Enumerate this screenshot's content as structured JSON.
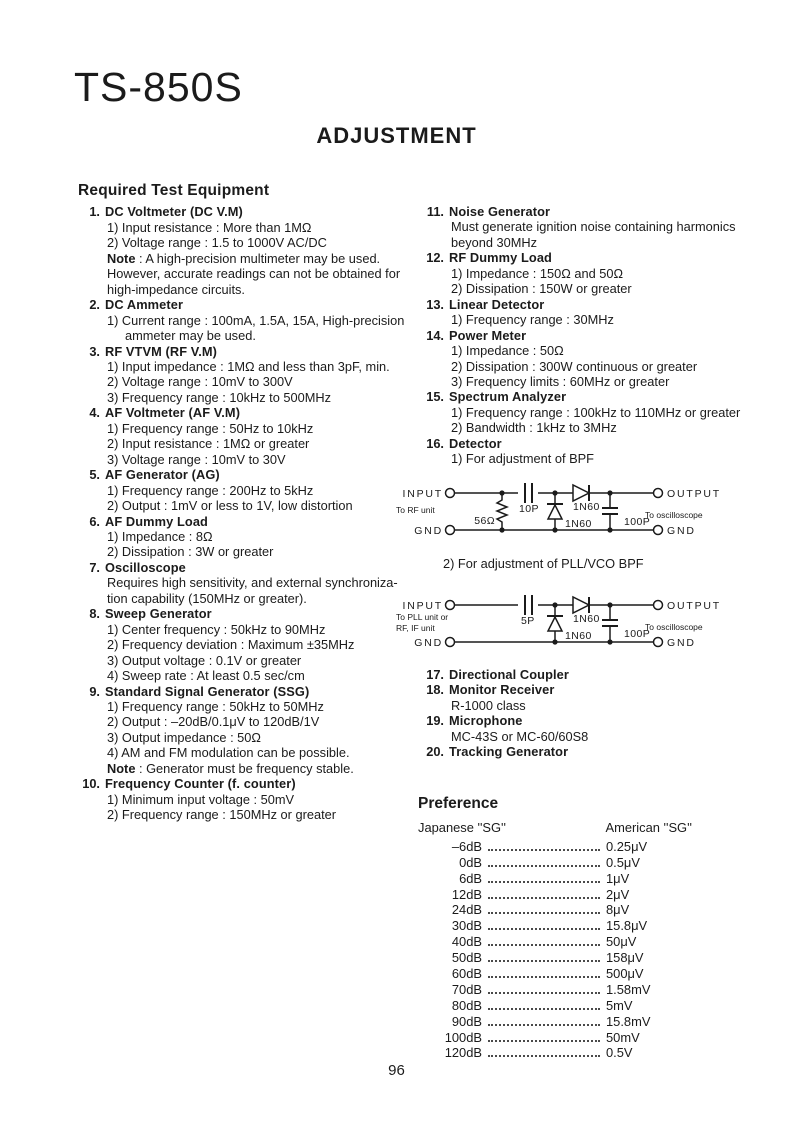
{
  "page": {
    "model": "TS-850S",
    "title": "ADJUSTMENT",
    "page_number": "96"
  },
  "equipment": {
    "heading": "Required Test Equipment",
    "pll_caption": "2) For adjustment of PLL/VCO BPF",
    "left": [
      {
        "num": "1.",
        "name": "DC Voltmeter (DC V.M)",
        "lines": [
          {
            "t": "1) Input resistance : More than 1MΩ",
            "lv": 1
          },
          {
            "t": "2) Voltage range : 1.5 to 1000V AC/DC",
            "lv": 1
          },
          {
            "pre": "Note",
            "t": " : A high-precision multimeter may be used.",
            "lv": 1
          },
          {
            "t": "However, accurate readings can not be obtained for",
            "lv": 1
          },
          {
            "t": "high-impedance circuits.",
            "lv": 1
          }
        ]
      },
      {
        "num": "2.",
        "name": "DC Ammeter",
        "lines": [
          {
            "t": "1) Current range : 100mA, 1.5A, 15A, High-precision",
            "lv": 1
          },
          {
            "t": "ammeter may be used.",
            "lv": 2
          }
        ]
      },
      {
        "num": "3.",
        "name": "RF VTVM (RF V.M)",
        "lines": [
          {
            "t": "1) Input impedance : 1MΩ and less than 3pF, min.",
            "lv": 1
          },
          {
            "t": "2) Voltage range : 10mV to 300V",
            "lv": 1
          },
          {
            "t": "3) Frequency range : 10kHz to 500MHz",
            "lv": 1
          }
        ]
      },
      {
        "num": "4.",
        "name": "AF Voltmeter (AF V.M)",
        "lines": [
          {
            "t": "1) Frequency range : 50Hz to 10kHz",
            "lv": 1
          },
          {
            "t": "2) Input resistance : 1MΩ or greater",
            "lv": 1
          },
          {
            "t": "3) Voltage range : 10mV to 30V",
            "lv": 1
          }
        ]
      },
      {
        "num": "5.",
        "name": "AF Generator (AG)",
        "lines": [
          {
            "t": "1) Frequency range : 200Hz to 5kHz",
            "lv": 1
          },
          {
            "t": "2) Output : 1mV or less to 1V, low distortion",
            "lv": 1
          }
        ]
      },
      {
        "num": "6.",
        "name": "AF Dummy Load",
        "lines": [
          {
            "t": "1) Impedance : 8Ω",
            "lv": 1
          },
          {
            "t": "2) Dissipation : 3W or greater",
            "lv": 1
          }
        ]
      },
      {
        "num": "7.",
        "name": "Oscilloscope",
        "lines": [
          {
            "t": "Requires high sensitivity, and external synchroniza-",
            "lv": 1
          },
          {
            "t": "tion capability (150MHz or greater).",
            "lv": 1
          }
        ]
      },
      {
        "num": "8.",
        "name": "Sweep Generator",
        "lines": [
          {
            "t": "1) Center frequency : 50kHz to 90MHz",
            "lv": 1
          },
          {
            "t": "2) Frequency deviation : Maximum ±35MHz",
            "lv": 1
          },
          {
            "t": "3) Output voltage : 0.1V or greater",
            "lv": 1
          },
          {
            "t": "4) Sweep rate : At least 0.5 sec/cm",
            "lv": 1
          }
        ]
      },
      {
        "num": "9.",
        "name": "Standard Signal Generator (SSG)",
        "lines": [
          {
            "t": "1) Frequency range : 50kHz to 50MHz",
            "lv": 1
          },
          {
            "t": "2) Output : –20dB/0.1μV to 120dB/1V",
            "lv": 1
          },
          {
            "t": "3) Output impedance : 50Ω",
            "lv": 1
          },
          {
            "t": "4) AM and FM modulation can be possible.",
            "lv": 1
          },
          {
            "pre": "Note",
            "t": " : Generator must be frequency stable.",
            "lv": 1
          }
        ]
      },
      {
        "num": "10.",
        "name": "Frequency Counter (f. counter)",
        "lines": [
          {
            "t": "1) Minimum input voltage : 50mV",
            "lv": 1
          },
          {
            "t": "2) Frequency range : 150MHz or greater",
            "lv": 1
          }
        ]
      }
    ],
    "right_top": [
      {
        "num": "11.",
        "name": "Noise Generator",
        "lines": [
          {
            "t": "Must generate ignition noise containing harmonics",
            "lv": 1
          },
          {
            "t": "beyond 30MHz",
            "lv": 1
          }
        ]
      },
      {
        "num": "12.",
        "name": "RF Dummy Load",
        "lines": [
          {
            "t": "1) Impedance : 150Ω and 50Ω",
            "lv": 1
          },
          {
            "t": "2) Dissipation : 150W or greater",
            "lv": 1
          }
        ]
      },
      {
        "num": "13.",
        "name": "Linear Detector",
        "lines": [
          {
            "t": "1) Frequency range : 30MHz",
            "lv": 1
          }
        ]
      },
      {
        "num": "14.",
        "name": "Power Meter",
        "lines": [
          {
            "t": "1) Impedance : 50Ω",
            "lv": 1
          },
          {
            "t": "2) Dissipation : 300W continuous or greater",
            "lv": 1
          },
          {
            "t": "3) Frequency limits : 60MHz or greater",
            "lv": 1
          }
        ]
      },
      {
        "num": "15.",
        "name": "Spectrum Analyzer",
        "lines": [
          {
            "t": "1) Frequency range : 100kHz to 110MHz or greater",
            "lv": 1
          },
          {
            "t": "2) Bandwidth : 1kHz to 3MHz",
            "lv": 1
          }
        ]
      },
      {
        "num": "16.",
        "name": "Detector",
        "lines": [
          {
            "t": "1) For adjustment of BPF",
            "lv": 1
          }
        ]
      }
    ],
    "right_bottom": [
      {
        "num": "17.",
        "name": "Directional Coupler",
        "lines": []
      },
      {
        "num": "18.",
        "name": "Monitor Receiver",
        "lines": [
          {
            "t": "R-1000 class",
            "lv": 1
          }
        ]
      },
      {
        "num": "19.",
        "name": "Microphone",
        "lines": [
          {
            "t": "MC-43S or MC-60/60S8",
            "lv": 1
          }
        ]
      },
      {
        "num": "20.",
        "name": "Tracking Generator",
        "lines": []
      }
    ]
  },
  "diagrams": {
    "d1": {
      "input": "INPUT",
      "to_input": "To RF unit",
      "gnd_left": "GND",
      "resistor": "56Ω",
      "series_cap": "10P",
      "series_diode": "1N60",
      "shunt_diode": "1N60",
      "shunt_cap": "100P",
      "output": "OUTPUT",
      "to_output": "To oscilloscope",
      "gnd_right": "GND"
    },
    "d2": {
      "input": "INPUT",
      "to_input_1": "To PLL unit or",
      "to_input_2": "RF, IF unit",
      "gnd_left": "GND",
      "series_cap": "5P",
      "series_diode": "1N60",
      "shunt_diode": "1N60",
      "shunt_cap": "100P",
      "output": "OUTPUT",
      "to_output": "To oscilloscope",
      "gnd_right": "GND"
    }
  },
  "preference": {
    "heading": "Preference",
    "col_left": "Japanese ''SG''",
    "col_right": "American ''SG''",
    "rows": [
      {
        "db": "–6dB",
        "val": "0.25μV"
      },
      {
        "db": "0dB",
        "val": "0.5μV"
      },
      {
        "db": "6dB",
        "val": "1μV"
      },
      {
        "db": "12dB",
        "val": "2μV"
      },
      {
        "db": "24dB",
        "val": "8μV"
      },
      {
        "db": "30dB",
        "val": "15.8μV"
      },
      {
        "db": "40dB",
        "val": "50μV"
      },
      {
        "db": "50dB",
        "val": "158μV"
      },
      {
        "db": "60dB",
        "val": "500μV"
      },
      {
        "db": "70dB",
        "val": "1.58mV"
      },
      {
        "db": "80dB",
        "val": "5mV"
      },
      {
        "db": "90dB",
        "val": "15.8mV"
      },
      {
        "db": "100dB",
        "val": "50mV"
      },
      {
        "db": "120dB",
        "val": "0.5V"
      }
    ]
  }
}
